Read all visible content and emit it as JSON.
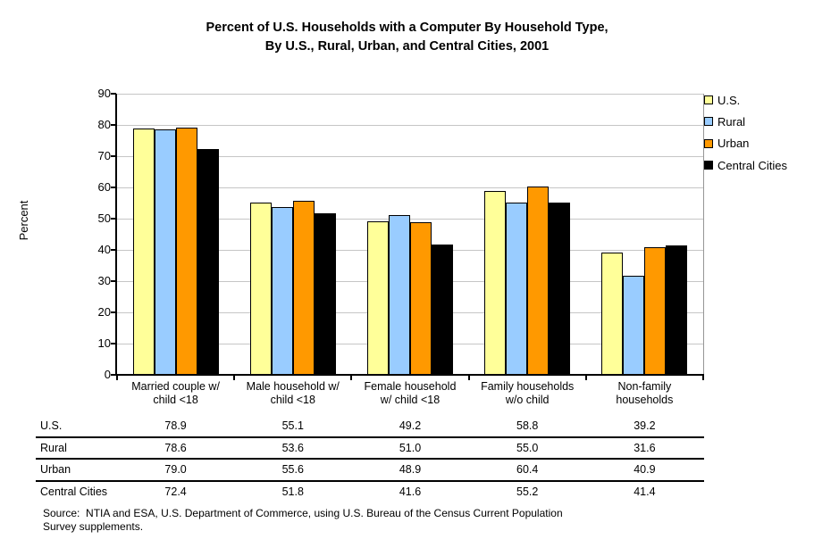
{
  "chart_data": {
    "type": "bar",
    "title": "Percent of U.S. Households with a Computer By Household Type,\nBy U.S., Rural, Urban, and Central Cities, 2001",
    "ylabel": "Percent",
    "ylim": [
      0,
      90
    ],
    "ytick_step": 10,
    "grid": true,
    "legend_position": "right",
    "categories": [
      "Married couple w/\nchild <18",
      "Male household w/\nchild <18",
      "Female household\nw/ child <18",
      "Family households\nw/o child",
      "Non-family\nhouseholds"
    ],
    "series": [
      {
        "name": "U.S.",
        "color": "#FFFF99",
        "values": [
          78.9,
          55.1,
          49.2,
          58.8,
          39.2
        ]
      },
      {
        "name": "Rural",
        "color": "#99CCFF",
        "values": [
          78.6,
          53.6,
          51.0,
          55.0,
          31.6
        ]
      },
      {
        "name": "Urban",
        "color": "#FF9900",
        "values": [
          79.0,
          55.6,
          48.9,
          60.4,
          40.9
        ]
      },
      {
        "name": "Central Cities",
        "color": "#000000",
        "values": [
          72.4,
          51.8,
          41.6,
          55.2,
          41.4
        ]
      }
    ]
  },
  "table": {
    "rows": [
      {
        "label": "U.S.",
        "values": [
          "78.9",
          "55.1",
          "49.2",
          "58.8",
          "39.2"
        ]
      },
      {
        "label": "Rural",
        "values": [
          "78.6",
          "53.6",
          "51.0",
          "55.0",
          "31.6"
        ]
      },
      {
        "label": "Urban",
        "values": [
          "79.0",
          "55.6",
          "48.9",
          "60.4",
          "40.9"
        ]
      },
      {
        "label": "Central Cities",
        "values": [
          "72.4",
          "51.8",
          "41.6",
          "55.2",
          "41.4"
        ]
      }
    ]
  },
  "source": "Source:  NTIA and ESA, U.S. Department of Commerce, using U.S. Bureau of the Census Current Population\nSurvey supplements."
}
